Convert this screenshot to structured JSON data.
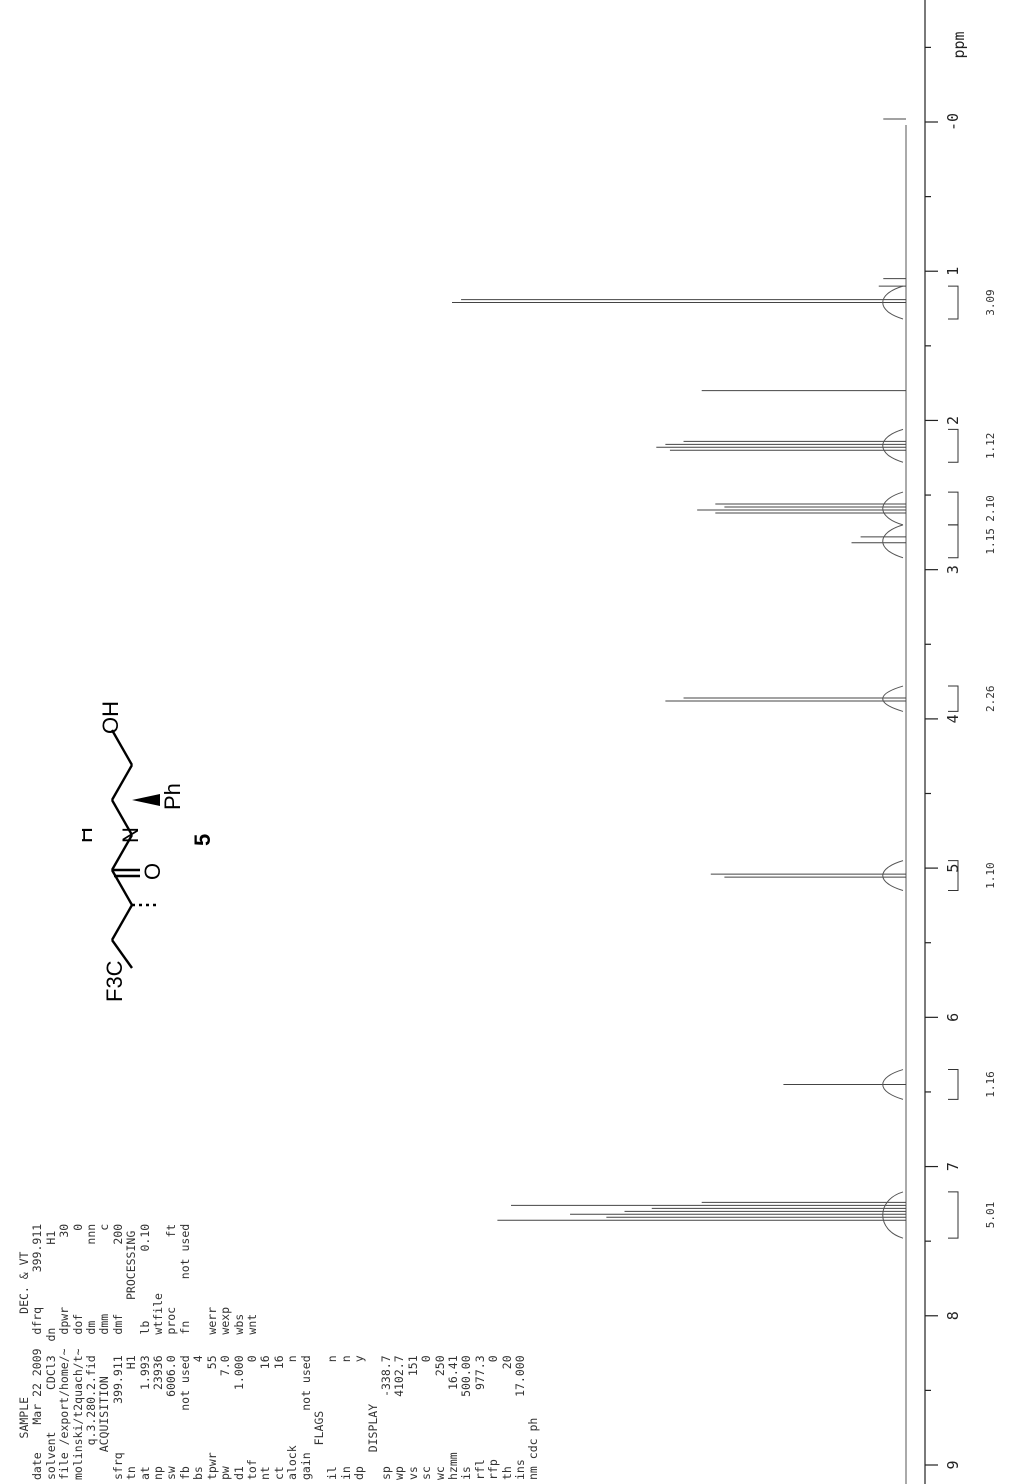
{
  "chart_data": {
    "type": "line",
    "title": "",
    "xlabel": "ppm",
    "ylabel": "",
    "x_axis_ticks": [
      "9",
      "8",
      "7",
      "6",
      "5",
      "4",
      "3",
      "2",
      "1",
      "0"
    ],
    "xlim": [
      9.6,
      -0.8
    ],
    "peaks": [
      {
        "x": 7.36,
        "y": 0.9
      },
      {
        "x": 7.34,
        "y": 0.66
      },
      {
        "x": 7.32,
        "y": 0.74
      },
      {
        "x": 7.3,
        "y": 0.62
      },
      {
        "x": 7.28,
        "y": 0.56
      },
      {
        "x": 7.26,
        "y": 0.87
      },
      {
        "x": 7.24,
        "y": 0.45
      },
      {
        "x": 6.45,
        "y": 0.27
      },
      {
        "x": 5.06,
        "y": 0.4
      },
      {
        "x": 5.04,
        "y": 0.43
      },
      {
        "x": 3.88,
        "y": 0.53
      },
      {
        "x": 3.86,
        "y": 0.49
      },
      {
        "x": 2.82,
        "y": 0.12
      },
      {
        "x": 2.78,
        "y": 0.1
      },
      {
        "x": 2.62,
        "y": 0.42
      },
      {
        "x": 2.6,
        "y": 0.46
      },
      {
        "x": 2.58,
        "y": 0.4
      },
      {
        "x": 2.56,
        "y": 0.42
      },
      {
        "x": 2.2,
        "y": 0.52
      },
      {
        "x": 2.18,
        "y": 0.55
      },
      {
        "x": 2.16,
        "y": 0.53
      },
      {
        "x": 2.14,
        "y": 0.49
      },
      {
        "x": 1.8,
        "y": 0.45
      },
      {
        "x": 1.21,
        "y": 1.0
      },
      {
        "x": 1.19,
        "y": 0.98
      },
      {
        "x": 1.1,
        "y": 0.06
      },
      {
        "x": 1.05,
        "y": 0.05
      },
      {
        "x": -0.02,
        "y": 0.05
      }
    ],
    "integrals": [
      {
        "label": "5.01",
        "from": 7.48,
        "to": 7.17
      },
      {
        "label": "1.16",
        "from": 6.55,
        "to": 6.35
      },
      {
        "label": "1.10",
        "from": 5.15,
        "to": 4.95
      },
      {
        "label": "2.26",
        "from": 3.95,
        "to": 3.78
      },
      {
        "label": "1.15",
        "from": 2.92,
        "to": 2.7
      },
      {
        "label": "2.10",
        "from": 2.7,
        "to": 2.48
      },
      {
        "label": "1.12",
        "from": 2.28,
        "to": 2.06
      },
      {
        "label": "3.09",
        "from": 1.32,
        "to": 1.1
      }
    ]
  },
  "params": {
    "block1": "      SAMPLE            DEC. & VT\ndate    Mar 22 2009  dfrq     399.911\nsolvent      CDCl3  dn            H1\nfile /export/home/~  dpwr          30\nmolinski/t2quach/t~  dof            0\n     q.3.280.2.fid   dm           nnn\n    ACQUISITION      dmm            c\nsfrq       399.911   dmf          200\ntn              H1        PROCESSING\nat           1.993   lb          0.10\nnp           23936   wtfile\nsw          6006.0   proc          ft\nfb        not used   fn      not used\nbs               4\ntpwr            55   werr\npw             7.0   wexp\nd1           1.000   wbs\ntof              0   wnt\nnt              16\nct              16\nalock            n\ngain      not used\n     FLAGS\nil               n\nin               n\ndp               y\n    DISPLAY\nsp          -338.7\nwp          4102.7\nvs             151\nsc               0\nwc             250\nhzmm         16.41\nis          500.00\nrfl          977.3\nrfp              0\nth              20\nins         17.000\nnm cdc ph"
  },
  "structure": {
    "f3c": "F3C",
    "o": "O",
    "h": "H",
    "n": "N",
    "oh": "OH",
    "ph": "Ph",
    "compound": "5"
  }
}
